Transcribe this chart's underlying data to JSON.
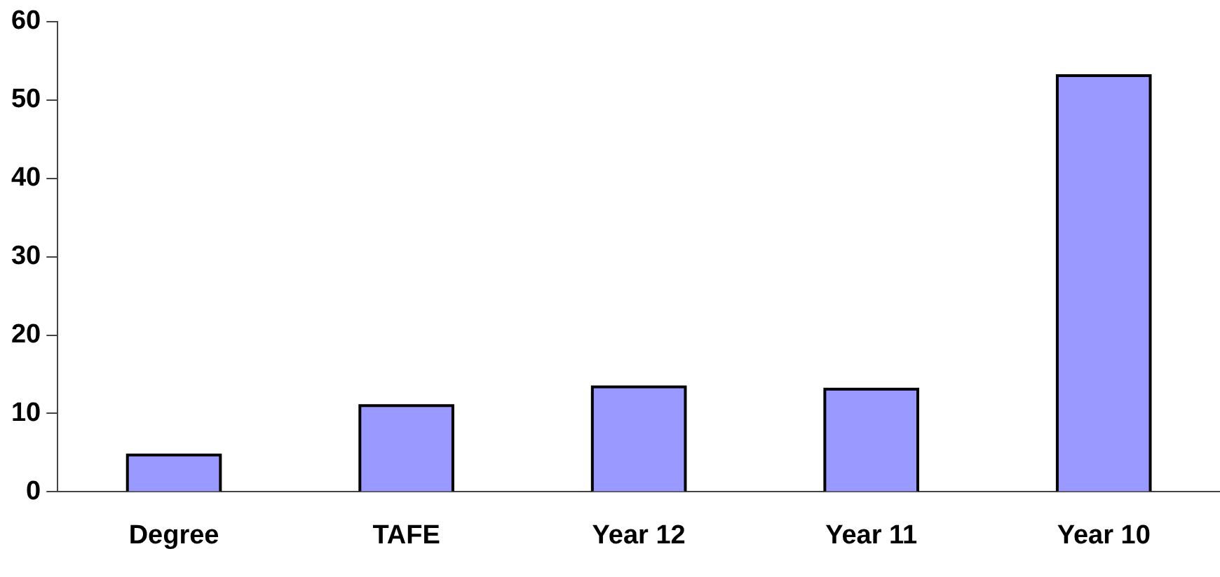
{
  "chart_data": {
    "type": "bar",
    "categories": [
      "Degree",
      "TAFE",
      "Year 12",
      "Year 11",
      "Year 10"
    ],
    "values": [
      4.7,
      11.0,
      13.4,
      13.1,
      53.1
    ],
    "color": "#9999ff",
    "ylim": [
      0,
      60
    ],
    "yticks": [
      0,
      10,
      20,
      30,
      40,
      50,
      60
    ],
    "grid": false,
    "legend": false
  }
}
